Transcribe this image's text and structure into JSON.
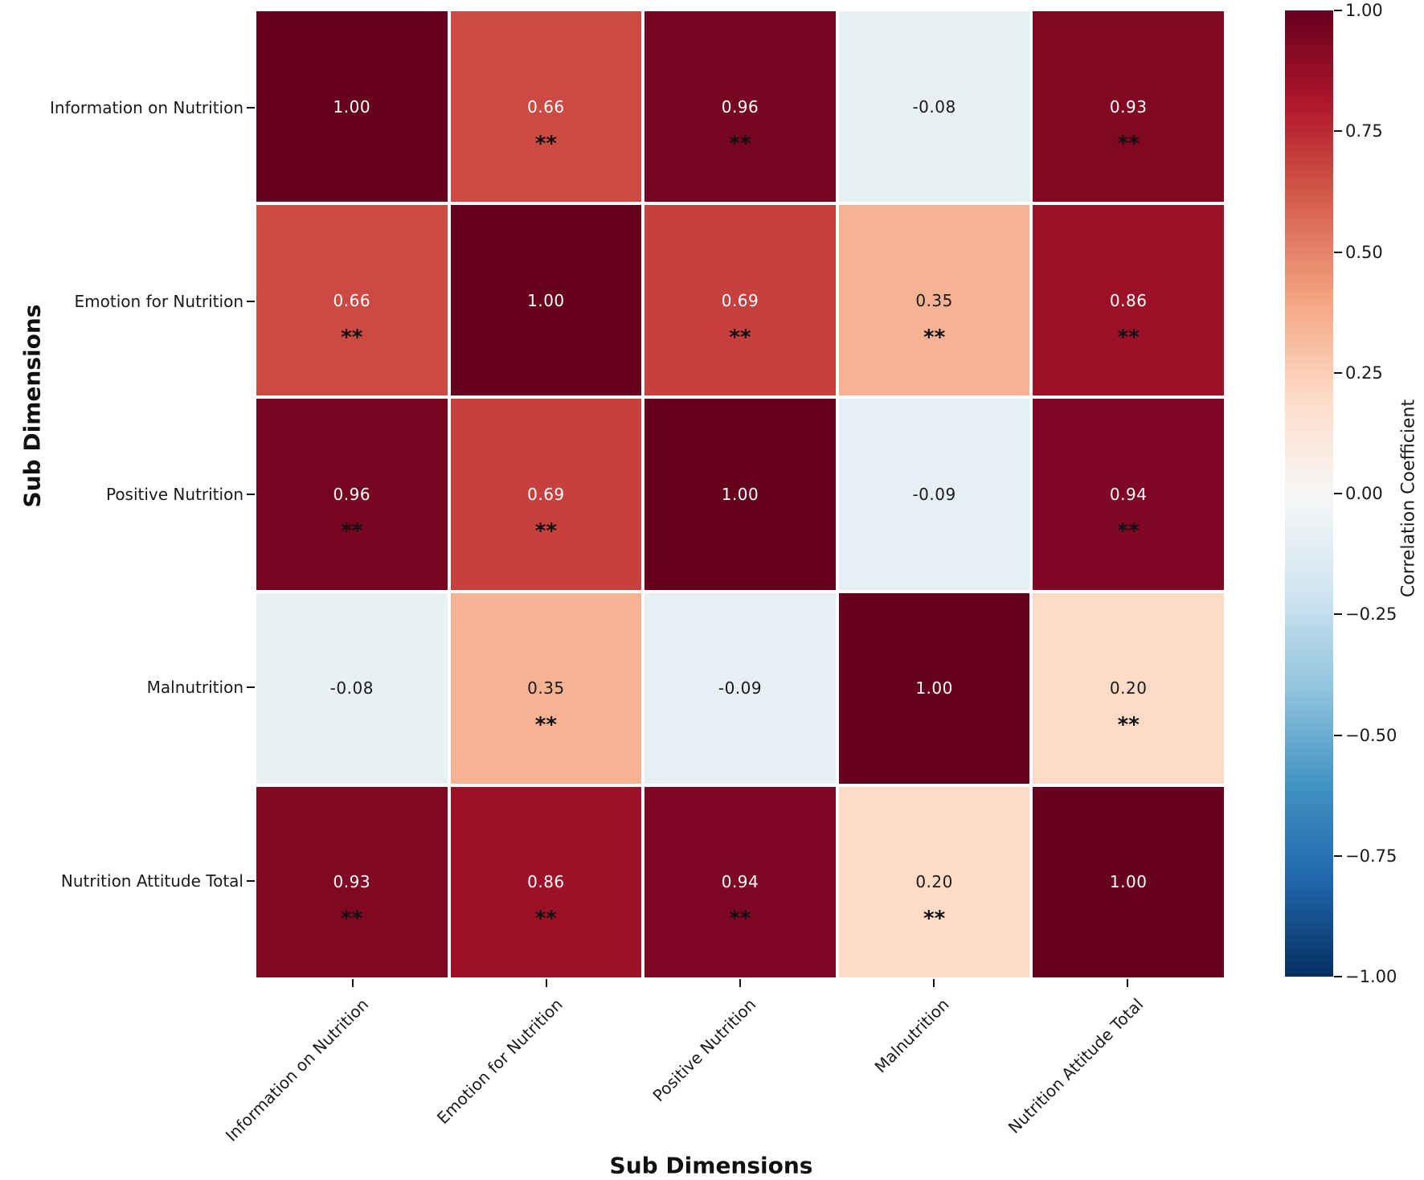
{
  "figure": {
    "background": "#ffffff",
    "x_axis_label": "Sub Dimensions",
    "y_axis_label": "Sub Dimensions",
    "colorbar_label": "Correlation Coefficient"
  },
  "colors": {
    "cell_grid_line": "#ffffff",
    "tick_mark": "#111111",
    "tick_text": "#1a1a1a",
    "annotation_light": "#ffffff",
    "annotation_dark": "#1a1a1a",
    "significance_marker": "#111111"
  },
  "chart_data": {
    "type": "heatmap",
    "title": "",
    "xlabel": "Sub Dimensions",
    "ylabel": "Sub Dimensions",
    "categories": [
      "Information on Nutrition",
      "Emotion for Nutrition",
      "Positive Nutrition",
      "Malnutrition",
      "Nutrition Attitude Total"
    ],
    "matrix": [
      [
        1.0,
        0.66,
        0.96,
        -0.08,
        0.93
      ],
      [
        0.66,
        1.0,
        0.69,
        0.35,
        0.86
      ],
      [
        0.96,
        0.69,
        1.0,
        -0.09,
        0.94
      ],
      [
        -0.08,
        0.35,
        -0.09,
        1.0,
        0.2
      ],
      [
        0.93,
        0.86,
        0.94,
        0.2,
        1.0
      ]
    ],
    "significance": [
      [
        "",
        "**",
        "**",
        "",
        "**"
      ],
      [
        "**",
        "",
        "**",
        "**",
        "**"
      ],
      [
        "**",
        "**",
        "",
        "",
        "**"
      ],
      [
        "",
        "**",
        "",
        "",
        "**"
      ],
      [
        "**",
        "**",
        "**",
        "**",
        ""
      ]
    ],
    "value_format_decimals": 2,
    "grid": false,
    "legend_position": "right-colorbar",
    "colorbar": {
      "label": "Correlation Coefficient",
      "vmin": -1,
      "vmax": 1,
      "ticks": [
        {
          "value": 1.0,
          "label": "1.00"
        },
        {
          "value": 0.75,
          "label": "0.75"
        },
        {
          "value": 0.5,
          "label": "0.50"
        },
        {
          "value": 0.25,
          "label": "0.25"
        },
        {
          "value": 0.0,
          "label": "0.00"
        },
        {
          "value": -0.25,
          "label": "−0.25"
        },
        {
          "value": -0.5,
          "label": "−0.50"
        },
        {
          "value": -0.75,
          "label": "−0.75"
        },
        {
          "value": -1.0,
          "label": "−1.00"
        }
      ]
    },
    "colormap": {
      "name": "RdBu_r",
      "anchors": [
        {
          "value": -1.0,
          "color": "#053061"
        },
        {
          "value": -0.8,
          "color": "#2166ac"
        },
        {
          "value": -0.6,
          "color": "#4393c3"
        },
        {
          "value": -0.4,
          "color": "#92c5de"
        },
        {
          "value": -0.2,
          "color": "#d1e5f0"
        },
        {
          "value": 0.0,
          "color": "#f7f7f7"
        },
        {
          "value": 0.2,
          "color": "#fddbc7"
        },
        {
          "value": 0.4,
          "color": "#f4a582"
        },
        {
          "value": 0.6,
          "color": "#d6604d"
        },
        {
          "value": 0.8,
          "color": "#b2182b"
        },
        {
          "value": 1.0,
          "color": "#67001f"
        }
      ]
    }
  }
}
